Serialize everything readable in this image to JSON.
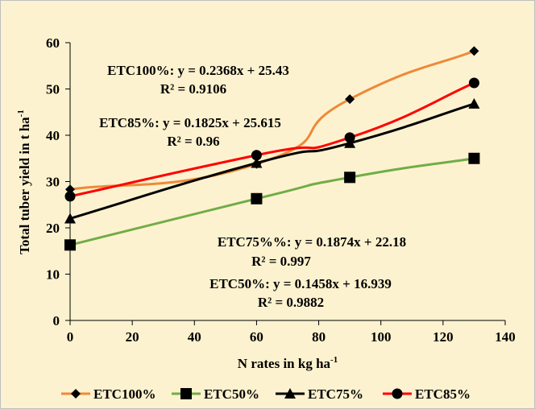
{
  "chart_data": {
    "type": "line",
    "xlabel": "N rates in kg ha",
    "xlabel_sup": "-1",
    "ylabel": "Total tuber yield in t ha",
    "ylabel_sup": "-1",
    "xlim": [
      0,
      140
    ],
    "ylim": [
      0,
      60
    ],
    "xticks": [
      0,
      20,
      40,
      60,
      80,
      100,
      120,
      140
    ],
    "yticks": [
      0,
      10,
      20,
      30,
      40,
      50,
      60
    ],
    "grid": false,
    "legend_position": "bottom",
    "x": [
      0,
      60,
      90,
      130
    ],
    "series": [
      {
        "name": "ETC100%",
        "values": [
          28.3,
          33.8,
          47.8,
          58.2
        ],
        "color": "#ed8a3a",
        "marker": "diamond",
        "smooth": true
      },
      {
        "name": "ETC50%",
        "values": [
          16.3,
          26.3,
          30.9,
          35.0
        ],
        "color": "#70ad47",
        "marker": "square",
        "smooth": true
      },
      {
        "name": "ETC75%",
        "values": [
          22.0,
          34.0,
          38.3,
          46.8
        ],
        "color": "#000000",
        "marker": "triangle",
        "smooth": true
      },
      {
        "name": "ETC85%",
        "values": [
          26.8,
          35.7,
          39.5,
          51.3
        ],
        "color": "#ff0000",
        "marker": "circle",
        "smooth": true
      }
    ],
    "annotations": [
      {
        "text": "ETC100%: y = 0.2368x + 25.43"
      },
      {
        "text": "R² = 0.9106"
      },
      {
        "text": "ETC85%: y = 0.1825x + 25.615"
      },
      {
        "text": "R² = 0.96"
      },
      {
        "text": "ETC75%%: y = 0.1874x + 22.18"
      },
      {
        "text": "R² = 0.997"
      },
      {
        "text": "ETC50%: y = 0.1458x + 16.939"
      },
      {
        "text": "R² = 0.9882"
      }
    ]
  }
}
